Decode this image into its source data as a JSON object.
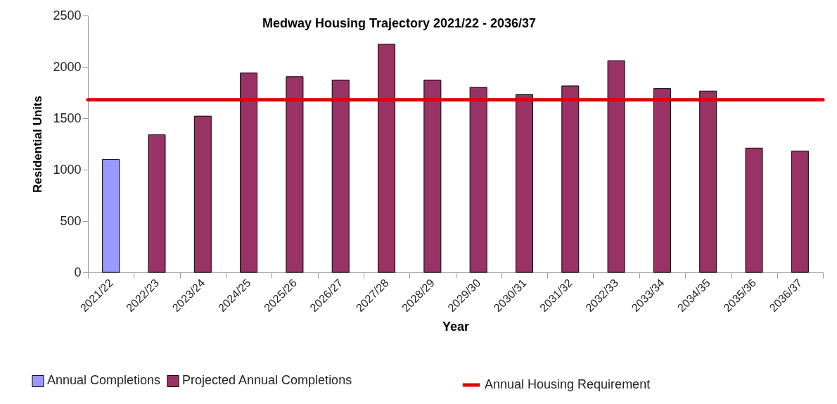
{
  "chart_data": {
    "type": "bar",
    "title": "Medway Housing Trajectory 2021/22 - 2036/37",
    "xlabel": "Year",
    "ylabel": "Residential Units",
    "categories": [
      "2021/22",
      "2022/23",
      "2023/24",
      "2024/25",
      "2025/26",
      "2026/27",
      "2027/28",
      "2028/29",
      "2029/30",
      "2030/31",
      "2031/32",
      "2032/33",
      "2033/34",
      "2034/35",
      "2035/36",
      "2036/37"
    ],
    "series": [
      {
        "name": "Annual Completions",
        "color": "#9999ff",
        "values": [
          1100,
          null,
          null,
          null,
          null,
          null,
          null,
          null,
          null,
          null,
          null,
          null,
          null,
          null,
          null,
          null
        ]
      },
      {
        "name": "Projected Annual Completions",
        "color": "#993366",
        "values": [
          null,
          1340,
          1520,
          1940,
          1905,
          1870,
          2220,
          1870,
          1800,
          1730,
          1815,
          2060,
          1790,
          1765,
          1210,
          1180
        ]
      }
    ],
    "ref_lines": [
      {
        "axis": "y",
        "value": 1680,
        "label": "Annual Housing Requirement",
        "color": "#e00000"
      }
    ],
    "ylim": [
      0,
      2500
    ],
    "yticks": [
      0,
      500,
      1000,
      1500,
      2000,
      2500
    ],
    "grid": false,
    "legend": "bottom"
  }
}
